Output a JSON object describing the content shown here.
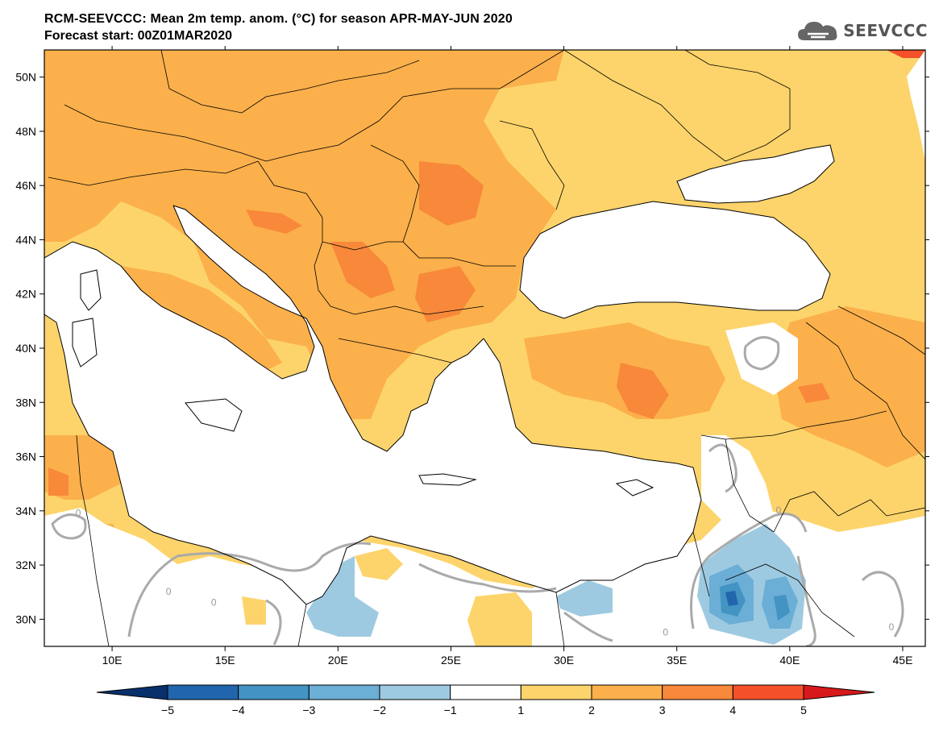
{
  "header": {
    "title": "RCM-SEEVCCC: Mean 2m temp. anom. (°C) for season APR-MAY-JUN 2020",
    "subtitle": "Forecast start: 00Z01MAR2020",
    "logo_text": "SEEVCCC",
    "logo_icon": "cloud-icon"
  },
  "map": {
    "lon_range": [
      7,
      46
    ],
    "lat_range": [
      29,
      51
    ],
    "lat_ticks": [
      {
        "value": 50,
        "label": "50N"
      },
      {
        "value": 48,
        "label": "48N"
      },
      {
        "value": 46,
        "label": "46N"
      },
      {
        "value": 44,
        "label": "44N"
      },
      {
        "value": 42,
        "label": "42N"
      },
      {
        "value": 40,
        "label": "40N"
      },
      {
        "value": 38,
        "label": "38N"
      },
      {
        "value": 36,
        "label": "36N"
      },
      {
        "value": 34,
        "label": "34N"
      },
      {
        "value": 32,
        "label": "32N"
      },
      {
        "value": 30,
        "label": "30N"
      }
    ],
    "lon_ticks": [
      {
        "value": 10,
        "label": "10E"
      },
      {
        "value": 15,
        "label": "15E"
      },
      {
        "value": 20,
        "label": "20E"
      },
      {
        "value": 25,
        "label": "25E"
      },
      {
        "value": 30,
        "label": "30E"
      },
      {
        "value": 35,
        "label": "35E"
      },
      {
        "value": 40,
        "label": "40E"
      },
      {
        "value": 45,
        "label": "45E"
      }
    ],
    "contour_label": "0"
  },
  "colorbar": {
    "levels": [
      "−5",
      "−4",
      "−3",
      "−2",
      "−1",
      "1",
      "2",
      "3",
      "4",
      "5"
    ],
    "colors": [
      "#08306b",
      "#2166ac",
      "#4393c3",
      "#6baed6",
      "#9ecae1",
      "#ffffff",
      "#fdd46b",
      "#fbb04b",
      "#f8883a",
      "#f4502a",
      "#d7191c"
    ]
  }
}
